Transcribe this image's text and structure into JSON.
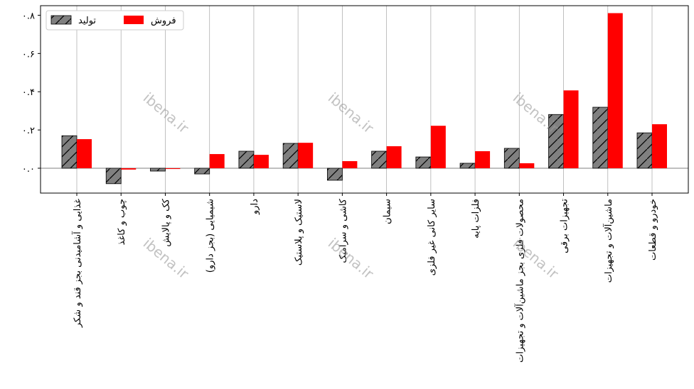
{
  "chart_data": {
    "type": "bar",
    "categories": [
      "غذایی و آشامیدنی بجز قند و شکر",
      "چوب و کاغذ",
      "کک و پالایش",
      "شیمیایی (بجز دارو)",
      "دارو",
      "لاستیک و پلاستیک",
      "کاشی و سرامیک",
      "سیمان",
      "سایر کانی غیر فلزی",
      "فلزات پایه",
      "محصولات فلزی بجز ماشین‌آلات و تجهیزات",
      "تجهیزات برقی",
      "ماشین‌آلات و تجهیزات",
      "خودرو و قطعات"
    ],
    "series": [
      {
        "name": "تولید",
        "color": "#808080",
        "hatch": true,
        "values": [
          0.17,
          -0.081,
          -0.015,
          -0.03,
          0.089,
          0.13,
          -0.063,
          0.089,
          0.059,
          0.026,
          0.104,
          0.281,
          0.319,
          0.185
        ]
      },
      {
        "name": "فروش",
        "color": "#ff0000",
        "hatch": false,
        "values": [
          0.152,
          -0.007,
          -0.004,
          0.074,
          0.07,
          0.133,
          0.037,
          0.115,
          0.222,
          0.089,
          0.026,
          0.407,
          0.811,
          0.23
        ]
      }
    ],
    "ylim": [
      -0.13,
      0.85
    ],
    "yticks": [
      {
        "value": 0,
        "label": "۰.۰"
      },
      {
        "value": 0.2,
        "label": "۰.۲"
      },
      {
        "value": 0.4,
        "label": "۰.۴"
      },
      {
        "value": 0.6,
        "label": "۰.۶"
      },
      {
        "value": 0.8,
        "label": "۰.۸"
      }
    ],
    "grid": "x",
    "legend": "upper left",
    "watermark": "ibena.ir"
  }
}
